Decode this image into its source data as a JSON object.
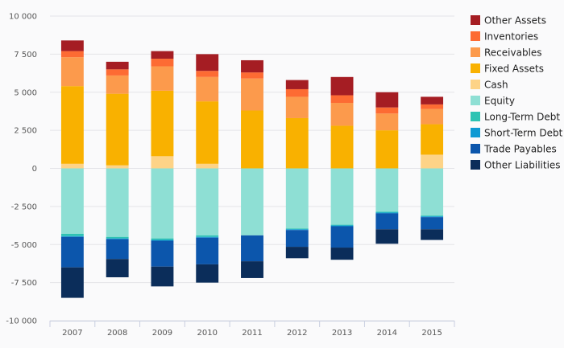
{
  "chart_data": {
    "type": "bar",
    "stacked": true,
    "categories": [
      "2007",
      "2008",
      "2009",
      "2010",
      "2011",
      "2012",
      "2013",
      "2014",
      "2015"
    ],
    "ylim": [
      -10000,
      10000
    ],
    "yticks": [
      10000,
      7500,
      5000,
      2500,
      0,
      -2500,
      -5000,
      -7500,
      -10000
    ],
    "ytick_labels": [
      "10 000",
      "7 500",
      "5 000",
      "2 500",
      "0",
      "-2 500",
      "-5 000",
      "-7 500",
      "-10 000"
    ],
    "legend_placement": "right",
    "grid": true,
    "series": [
      {
        "name": "Cash",
        "color": "#fdd387",
        "values": [
          300,
          200,
          800,
          300,
          0,
          0,
          0,
          0,
          900
        ]
      },
      {
        "name": "Fixed Assets",
        "color": "#f9b100",
        "values": [
          5100,
          4700,
          4300,
          4100,
          3800,
          3300,
          2800,
          2500,
          2000
        ]
      },
      {
        "name": "Receivables",
        "color": "#fc9a4c",
        "values": [
          1900,
          1200,
          1600,
          1600,
          2100,
          1400,
          1500,
          1100,
          1000
        ]
      },
      {
        "name": "Inventories",
        "color": "#fd6b33",
        "values": [
          400,
          400,
          500,
          400,
          400,
          500,
          500,
          400,
          300
        ]
      },
      {
        "name": "Other Assets",
        "color": "#a51d23",
        "values": [
          700,
          500,
          500,
          1100,
          800,
          600,
          1200,
          1000,
          500
        ]
      },
      {
        "name": "Equity",
        "color": "#8edfd4",
        "values": [
          -4300,
          -4500,
          -4600,
          -4400,
          -4400,
          -3950,
          -3700,
          -2850,
          -3100
        ]
      },
      {
        "name": "Long-Term Debt",
        "color": "#2dc3b3",
        "values": [
          -150,
          -100,
          -100,
          -100,
          0,
          -50,
          -50,
          -50,
          -50
        ]
      },
      {
        "name": "Short-Term Debt",
        "color": "#0e9ad3",
        "values": [
          -50,
          -50,
          -50,
          -50,
          0,
          -50,
          -50,
          -50,
          -50
        ]
      },
      {
        "name": "Trade Payables",
        "color": "#0c56ac",
        "values": [
          -2000,
          -1300,
          -1700,
          -1750,
          -1700,
          -1100,
          -1400,
          -1050,
          -800
        ]
      },
      {
        "name": "Other Liabilities",
        "color": "#0b2d5a",
        "values": [
          -2000,
          -1200,
          -1300,
          -1200,
          -1100,
          -750,
          -800,
          -950,
          -700
        ]
      }
    ],
    "legend_order": [
      "Other Assets",
      "Inventories",
      "Receivables",
      "Fixed Assets",
      "Cash",
      "Equity",
      "Long-Term Debt",
      "Short-Term Debt",
      "Trade Payables",
      "Other Liabilities"
    ]
  }
}
